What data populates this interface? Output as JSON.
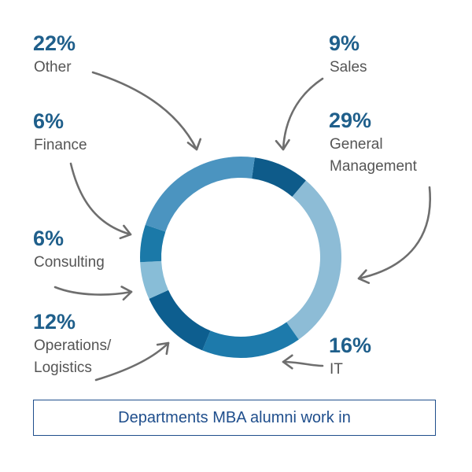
{
  "chart_data": {
    "type": "pie",
    "donut": true,
    "title": "Departments MBA alumni work in",
    "slices": [
      {
        "key": "sales",
        "percent_label": "9%",
        "label_lines": [
          "Sales"
        ],
        "value": 9,
        "color": "#0e5b8a"
      },
      {
        "key": "general",
        "percent_label": "29%",
        "label_lines": [
          "General",
          "Management"
        ],
        "value": 29,
        "color": "#8dbcd6"
      },
      {
        "key": "it",
        "percent_label": "16%",
        "label_lines": [
          "IT"
        ],
        "value": 16,
        "color": "#1d7aab"
      },
      {
        "key": "operations",
        "percent_label": "12%",
        "label_lines": [
          "Operations/",
          "Logistics"
        ],
        "value": 12,
        "color": "#0d5e8f"
      },
      {
        "key": "consulting",
        "percent_label": "6%",
        "label_lines": [
          "Consulting"
        ],
        "value": 6,
        "color": "#88bdd7"
      },
      {
        "key": "finance",
        "percent_label": "6%",
        "label_lines": [
          "Finance"
        ],
        "value": 6,
        "color": "#1b79a8"
      },
      {
        "key": "other",
        "percent_label": "22%",
        "label_lines": [
          "Other"
        ],
        "value": 22,
        "color": "#4b94c0"
      }
    ]
  },
  "colors": {
    "percent_text": "#1f5f8b",
    "label_text": "#555555",
    "arrow": "#6e6e6e",
    "caption": "#1f4e8c"
  }
}
